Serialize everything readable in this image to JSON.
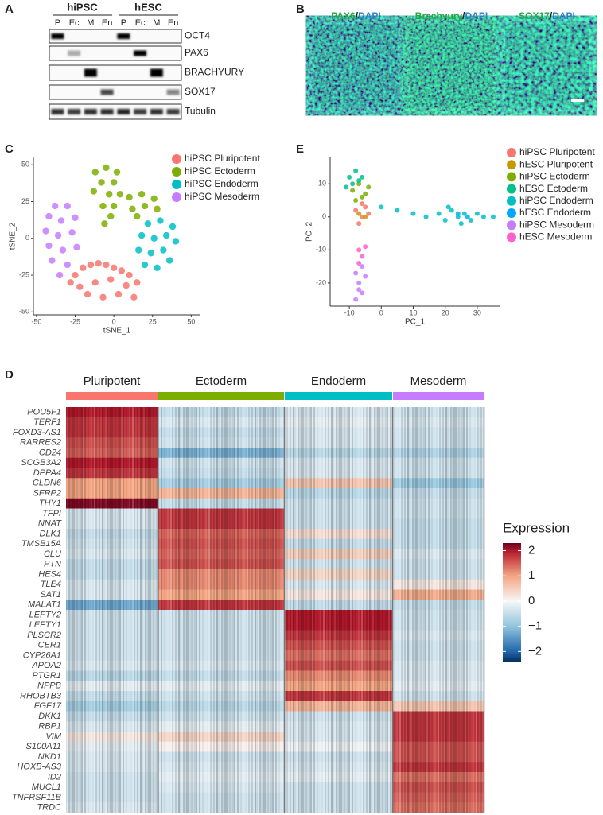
{
  "panels": {
    "blot": {
      "label": "A",
      "groups": [
        "hiPSC",
        "hESC"
      ],
      "lanes": [
        "P",
        "Ec",
        "M",
        "En",
        "P",
        "Ec",
        "M",
        "En"
      ],
      "markers": [
        "OCT4",
        "PAX6",
        "BRACHYURY",
        "SOX17",
        "Tubulin"
      ]
    },
    "images": {
      "label": "B",
      "separator": "/",
      "counterstain": "DAPI",
      "markers": [
        "PAX6",
        "Brachyury",
        "SOX17"
      ]
    }
  },
  "chart_data": [
    {
      "type": "scatter",
      "panel_label": "C",
      "x_label": "tSNE_1",
      "y_label": "tSNE_2",
      "xlim": [
        -52,
        56
      ],
      "ylim": [
        -52,
        55
      ],
      "xticks": [
        -50,
        -25,
        0,
        25,
        50
      ],
      "yticks": [
        -50,
        -25,
        0,
        25,
        50
      ],
      "series": [
        {
          "name": "hiPSC Pluripotent",
          "color": "#f8766d",
          "x": [
            -25,
            -20,
            -15,
            -10,
            -5,
            0,
            5,
            10,
            15,
            -22,
            -12,
            -2,
            8,
            -17,
            -7,
            3,
            13,
            -28
          ],
          "y": [
            -25,
            -20,
            -18,
            -17,
            -18,
            -20,
            -22,
            -25,
            -30,
            -33,
            -30,
            -28,
            -32,
            -38,
            -40,
            -38,
            -40,
            -30
          ]
        },
        {
          "name": "hiPSC Ectoderm",
          "color": "#7cae00",
          "x": [
            -12,
            -5,
            2,
            -8,
            0,
            -13,
            -3,
            4,
            -7,
            -2,
            -6,
            0,
            10,
            18,
            26,
            12,
            20,
            28,
            15
          ],
          "y": [
            45,
            48,
            45,
            38,
            38,
            32,
            30,
            30,
            22,
            15,
            10,
            22,
            28,
            30,
            27,
            20,
            22,
            20,
            15
          ]
        },
        {
          "name": "hiPSC Endoderm",
          "color": "#00bfc4",
          "x": [
            22,
            30,
            38,
            18,
            26,
            34,
            40,
            16,
            24,
            32,
            20,
            28,
            36
          ],
          "y": [
            10,
            12,
            8,
            2,
            0,
            2,
            -2,
            -8,
            -10,
            -8,
            -18,
            -20,
            -15
          ]
        },
        {
          "name": "hiPSC Mesoderm",
          "color": "#c77cff",
          "x": [
            -38,
            -30,
            -42,
            -34,
            -25,
            -44,
            -36,
            -27,
            -42,
            -33,
            -24,
            -40,
            -30,
            -35
          ],
          "y": [
            22,
            22,
            15,
            12,
            14,
            5,
            2,
            4,
            -5,
            -8,
            -6,
            -15,
            -18,
            -25
          ]
        }
      ]
    },
    {
      "type": "scatter",
      "panel_label": "E",
      "x_label": "PC_1",
      "y_label": "PC_2",
      "xlim": [
        -16,
        37
      ],
      "ylim": [
        -27,
        18
      ],
      "xticks": [
        -10,
        0,
        10,
        20,
        30
      ],
      "yticks": [
        10,
        0,
        -10,
        -20
      ],
      "series": [
        {
          "name": "hiPSC Pluripotent",
          "color": "#f8766d",
          "x": [
            -8,
            -6,
            -5,
            -7,
            -4,
            -6
          ],
          "y": [
            2,
            0,
            3,
            -2,
            1,
            4
          ]
        },
        {
          "name": "hESC Pluripotent",
          "color": "#c49a00",
          "x": [
            -7,
            -5
          ],
          "y": [
            1,
            0
          ]
        },
        {
          "name": "hiPSC Ectoderm",
          "color": "#7cae00",
          "x": [
            -9,
            -7,
            -5,
            -8,
            -6,
            -4
          ],
          "y": [
            8,
            10,
            7,
            5,
            6,
            9
          ]
        },
        {
          "name": "hESC Ectoderm",
          "color": "#00c08b",
          "x": [
            -10,
            -8,
            -6,
            -9,
            -7,
            -11
          ],
          "y": [
            12,
            14,
            12,
            10,
            11,
            9
          ]
        },
        {
          "name": "hiPSC Endoderm",
          "color": "#00bfc4",
          "x": [
            0,
            5,
            10,
            14,
            18,
            20,
            22,
            24,
            26,
            28,
            30,
            32,
            35,
            25,
            21
          ],
          "y": [
            3,
            2,
            1,
            0,
            1,
            -1,
            2,
            0,
            1,
            -1,
            1,
            0,
            0,
            -2,
            3
          ]
        },
        {
          "name": "hESC Endoderm",
          "color": "#00a9ff",
          "x": [
            24,
            27
          ],
          "y": [
            1,
            0
          ]
        },
        {
          "name": "hiPSC Mesoderm",
          "color": "#c77cff",
          "x": [
            -8,
            -6,
            -7,
            -5,
            -8,
            -6,
            -7
          ],
          "y": [
            -25,
            -23,
            -20,
            -18,
            -17,
            -15,
            -22
          ]
        },
        {
          "name": "hESC Mesoderm",
          "color": "#ff61cc",
          "x": [
            -7,
            -6,
            -5,
            -7
          ],
          "y": [
            -10,
            -12,
            -9,
            -14
          ]
        }
      ]
    },
    {
      "type": "heatmap",
      "panel_label": "D",
      "columns": [
        {
          "name": "Pluripotent",
          "color": "#f8766d"
        },
        {
          "name": "Ectoderm",
          "color": "#7cae00"
        },
        {
          "name": "Endoderm",
          "color": "#00bfc4"
        },
        {
          "name": "Mesoderm",
          "color": "#c77cff"
        }
      ],
      "rows": [
        "POU5F1",
        "TERF1",
        "FOXD3-AS1",
        "RARRES2",
        "CD24",
        "SCGB3A2",
        "DPPA4",
        "CLDN6",
        "SFRP2",
        "THY1",
        "TFPI",
        "NNAT",
        "DLK1",
        "TMSB15A",
        "CLU",
        "PTN",
        "HES4",
        "TLE4",
        "SAT1",
        "MALAT1",
        "LEFTY2",
        "LEFTY1",
        "PLSCR2",
        "CER1",
        "CYP26A1",
        "APOA2",
        "PTGR1",
        "NPPB",
        "RHOBTB3",
        "FGF17",
        "DKK1",
        "RBP1",
        "VIM",
        "S100A11",
        "NKD1",
        "HOXB-AS3",
        "ID2",
        "MUCL1",
        "TNFRSF11B",
        "TRDC"
      ],
      "values": [
        [
          2,
          -0.5,
          -0.3,
          -0.4
        ],
        [
          1.8,
          -0.3,
          -0.2,
          -0.3
        ],
        [
          1.8,
          -0.5,
          -0.3,
          -0.4
        ],
        [
          1.6,
          -0.4,
          -0.3,
          -0.4
        ],
        [
          1.5,
          -1.2,
          -0.6,
          -0.7
        ],
        [
          2,
          -0.4,
          -0.3,
          -0.4
        ],
        [
          1.8,
          -0.5,
          -0.3,
          -0.4
        ],
        [
          1,
          -0.8,
          0.6,
          -0.9
        ],
        [
          1,
          0.8,
          -0.6,
          -0.5
        ],
        [
          2.2,
          -0.5,
          -0.4,
          -0.4
        ],
        [
          -0.3,
          1.8,
          -0.4,
          -0.4
        ],
        [
          -0.3,
          1.8,
          -0.4,
          -0.5
        ],
        [
          -0.5,
          1.5,
          0.3,
          -0.5
        ],
        [
          -0.4,
          1.6,
          -0.5,
          -0.5
        ],
        [
          -0.3,
          1.5,
          0.5,
          -0.3
        ],
        [
          -0.5,
          1.6,
          -0.4,
          -0.4
        ],
        [
          -0.5,
          1.2,
          0.4,
          -0.4
        ],
        [
          -0.3,
          1.2,
          -0.3,
          0.2
        ],
        [
          -0.3,
          1,
          0.2,
          0.9
        ],
        [
          -1.3,
          1.8,
          -0.5,
          -0.5
        ],
        [
          -0.4,
          -0.4,
          2,
          -0.4
        ],
        [
          -0.4,
          -0.4,
          2,
          -0.4
        ],
        [
          -0.4,
          -0.4,
          1.8,
          -0.3
        ],
        [
          -0.4,
          -0.4,
          1.6,
          -0.4
        ],
        [
          -0.4,
          -0.4,
          1.4,
          -0.4
        ],
        [
          -0.3,
          -0.3,
          1.6,
          -0.3
        ],
        [
          -0.6,
          -0.5,
          1.2,
          -0.3
        ],
        [
          -0.2,
          -0.2,
          1,
          -0.2
        ],
        [
          -0.5,
          -0.4,
          1.8,
          -0.4
        ],
        [
          -0.8,
          -0.6,
          0.8,
          0.6
        ],
        [
          -0.5,
          -0.4,
          -0.4,
          1.8
        ],
        [
          -0.3,
          -0.2,
          -0.3,
          1.8
        ],
        [
          0.2,
          0.4,
          -0.3,
          1.8
        ],
        [
          -0.2,
          0.1,
          -0.1,
          1.6
        ],
        [
          -0.3,
          -0.4,
          -0.4,
          1.6
        ],
        [
          -0.3,
          -0.3,
          -0.3,
          1.8
        ],
        [
          -0.4,
          -0.2,
          -0.2,
          1.4
        ],
        [
          -0.4,
          -0.3,
          -0.4,
          1.6
        ],
        [
          -0.4,
          -0.4,
          -0.4,
          1.5
        ],
        [
          -0.3,
          -0.4,
          -0.4,
          1.4
        ]
      ],
      "colorbar": {
        "title": "Expression",
        "lim": [
          -2.4,
          2.3
        ],
        "ticks": [
          2,
          1,
          0,
          {
            "value": -1,
            "label": "−1"
          },
          {
            "value": -2,
            "label": "−2"
          }
        ]
      }
    }
  ]
}
